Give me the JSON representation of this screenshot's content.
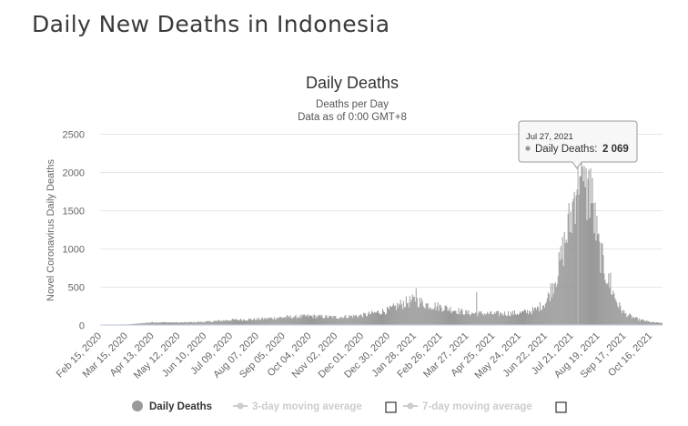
{
  "page": {
    "title": "Daily New Deaths in Indonesia"
  },
  "tooltip": {
    "date": "Jul 27, 2021",
    "label": "Daily Deaths:",
    "value": "2 069"
  },
  "legend": {
    "items": [
      {
        "label": "Daily Deaths",
        "active": true,
        "color": "#999999",
        "has_checkbox": false
      },
      {
        "label": "3-day moving average",
        "active": false,
        "color": "#cccccc",
        "has_checkbox": true
      },
      {
        "label": "7-day moving average",
        "active": false,
        "color": "#cccccc",
        "has_checkbox": true
      }
    ]
  },
  "colors": {
    "bars": "#999999",
    "grid": "#e6e6e6",
    "axis_text": "#666666",
    "title": "#333333"
  },
  "chart_data": {
    "type": "bar",
    "title": "Daily Deaths",
    "subtitle": "Deaths per Day",
    "subtitle2": "Data as of 0:00 GMT+8",
    "ylabel": "Novel Coronavirus Daily Deaths",
    "xlabel": "",
    "ylim": [
      0,
      2500
    ],
    "yticks": [
      0,
      500,
      1000,
      1500,
      2000,
      2500
    ],
    "x_start_date": "2020-02-15",
    "x_ticks": [
      "Feb 15, 2020",
      "Mar 15, 2020",
      "Apr 13, 2020",
      "May 12, 2020",
      "Jun 10, 2020",
      "Jul 09, 2020",
      "Aug 07, 2020",
      "Sep 05, 2020",
      "Oct 04, 2020",
      "Nov 02, 2020",
      "Dec 01, 2020",
      "Dec 30, 2020",
      "Jan 28, 2021",
      "Feb 26, 2021",
      "Mar 27, 2021",
      "Apr 25, 2021",
      "May 24, 2021",
      "Jun 22, 2021",
      "Jul 21, 2021",
      "Aug 19, 2021",
      "Sep 17, 2021",
      "Oct 16, 2021"
    ],
    "grid": true,
    "legend_position": "bottom",
    "series": [
      {
        "name": "Daily Deaths",
        "points": [
          {
            "x": "2020-02-15",
            "y": 0
          },
          {
            "x": "2020-03-15",
            "y": 2
          },
          {
            "x": "2020-03-28",
            "y": 12
          },
          {
            "x": "2020-04-13",
            "y": 30
          },
          {
            "x": "2020-05-12",
            "y": 25
          },
          {
            "x": "2020-06-10",
            "y": 35
          },
          {
            "x": "2020-07-09",
            "y": 60
          },
          {
            "x": "2020-08-07",
            "y": 70
          },
          {
            "x": "2020-09-05",
            "y": 95
          },
          {
            "x": "2020-10-04",
            "y": 110
          },
          {
            "x": "2020-11-02",
            "y": 95
          },
          {
            "x": "2020-12-01",
            "y": 120
          },
          {
            "x": "2020-12-30",
            "y": 190
          },
          {
            "x": "2021-01-15",
            "y": 280
          },
          {
            "x": "2021-01-28",
            "y": 320
          },
          {
            "x": "2021-02-10",
            "y": 260
          },
          {
            "x": "2021-02-26",
            "y": 230
          },
          {
            "x": "2021-03-27",
            "y": 150
          },
          {
            "x": "2021-04-25",
            "y": 140
          },
          {
            "x": "2021-05-24",
            "y": 150
          },
          {
            "x": "2021-06-10",
            "y": 190
          },
          {
            "x": "2021-06-22",
            "y": 300
          },
          {
            "x": "2021-07-05",
            "y": 700
          },
          {
            "x": "2021-07-15",
            "y": 1200
          },
          {
            "x": "2021-07-21",
            "y": 1500
          },
          {
            "x": "2021-07-27",
            "y": 2069
          },
          {
            "x": "2021-08-01",
            "y": 1750
          },
          {
            "x": "2021-08-10",
            "y": 1750
          },
          {
            "x": "2021-08-19",
            "y": 1000
          },
          {
            "x": "2021-08-30",
            "y": 550
          },
          {
            "x": "2021-09-10",
            "y": 250
          },
          {
            "x": "2021-09-17",
            "y": 140
          },
          {
            "x": "2021-10-01",
            "y": 70
          },
          {
            "x": "2021-10-16",
            "y": 30
          },
          {
            "x": "2021-10-28",
            "y": 18
          }
        ],
        "spikes": [
          {
            "x": "2020-09-17",
            "y": 110
          },
          {
            "x": "2021-01-29",
            "y": 476
          },
          {
            "x": "2021-04-06",
            "y": 425
          },
          {
            "x": "2021-07-22",
            "y": 1650
          },
          {
            "x": "2021-07-29",
            "y": 1940
          },
          {
            "x": "2021-08-04",
            "y": 1800
          },
          {
            "x": "2021-08-10",
            "y": 2048
          },
          {
            "x": "2021-09-01",
            "y": 680
          }
        ]
      }
    ]
  }
}
